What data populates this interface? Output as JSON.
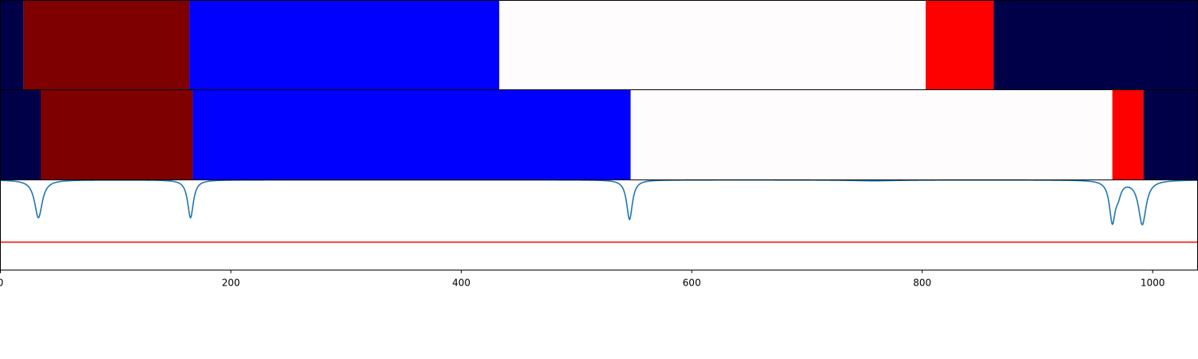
{
  "chart_data": [
    {
      "type": "heatmap",
      "panel": "top",
      "x_range": [
        0,
        1039
      ],
      "segments": [
        {
          "start": 0,
          "end": 20,
          "color": "#000048"
        },
        {
          "start": 20,
          "end": 164,
          "color": "#7f0000"
        },
        {
          "start": 164,
          "end": 433,
          "color": "#0000ff"
        },
        {
          "start": 433,
          "end": 803,
          "color": "#fffcfd"
        },
        {
          "start": 803,
          "end": 862,
          "color": "#ff0000"
        },
        {
          "start": 862,
          "end": 1039,
          "color": "#000048"
        }
      ]
    },
    {
      "type": "heatmap",
      "panel": "middle",
      "x_range": [
        0,
        1039
      ],
      "segments": [
        {
          "start": 0,
          "end": 35,
          "color": "#000048"
        },
        {
          "start": 35,
          "end": 167,
          "color": "#7f0000"
        },
        {
          "start": 167,
          "end": 547,
          "color": "#0000ff"
        },
        {
          "start": 547,
          "end": 965,
          "color": "#fffcfd"
        },
        {
          "start": 965,
          "end": 992,
          "color": "#ff0000"
        },
        {
          "start": 992,
          "end": 1039,
          "color": "#000048"
        }
      ]
    },
    {
      "type": "line",
      "panel": "bottom",
      "xlim": [
        0,
        1039
      ],
      "ylim": [
        -1.0,
        0.0
      ],
      "xticks": [
        0,
        200,
        400,
        600,
        800,
        1000
      ],
      "baseline": 0.0,
      "dips": [
        {
          "x": 33,
          "depth": -0.42,
          "width": 4
        },
        {
          "x": 165,
          "depth": -0.42,
          "width": 3
        },
        {
          "x": 546,
          "depth": -0.44,
          "width": 3
        },
        {
          "x": 758,
          "depth": -0.01,
          "width": 25
        },
        {
          "x": 965,
          "depth": -0.45,
          "width": 3
        },
        {
          "x": 970,
          "depth": -0.12,
          "width": 3
        },
        {
          "x": 991,
          "depth": -0.49,
          "width": 4
        }
      ],
      "threshold": {
        "y": -0.69,
        "color": "#ff0000"
      },
      "series": [
        {
          "color": "#1f77b4"
        }
      ]
    }
  ]
}
